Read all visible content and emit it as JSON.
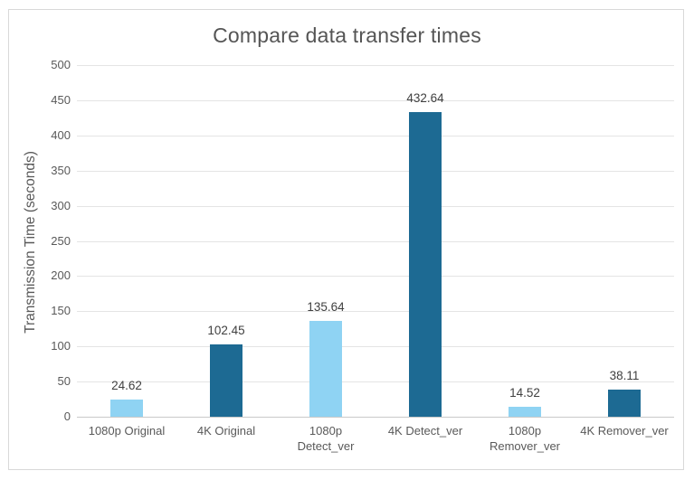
{
  "chart_data": {
    "type": "bar",
    "title": "Compare data transfer times",
    "xlabel": "",
    "ylabel": "Transmission Time (seconds)",
    "categories": [
      "1080p Original",
      "4K Original",
      "1080p Detect_ver",
      "4K Detect_ver",
      "1080p Remover_ver",
      "4K Remover_ver"
    ],
    "values": [
      24.62,
      102.45,
      135.64,
      432.64,
      14.52,
      38.11
    ],
    "value_labels": [
      "24.62",
      "102.45",
      "135.64",
      "432.64",
      "14.52",
      "38.11"
    ],
    "bar_colors": [
      "#8FD3F3",
      "#1D6A93",
      "#8FD3F3",
      "#1D6A93",
      "#8FD3F3",
      "#1D6A93"
    ],
    "label_wrap": [
      false,
      false,
      true,
      false,
      true,
      false
    ],
    "ylim": [
      0,
      500
    ],
    "ytick_step": 50,
    "grid": true,
    "legend": "none",
    "colors": {
      "light_bar": "#8FD3F3",
      "dark_bar": "#1D6A93",
      "gridline": "#e4e4e4",
      "frame_border": "#d9d9d9",
      "title_text": "#555555",
      "axis_text": "#595959",
      "value_text": "#404040"
    }
  }
}
